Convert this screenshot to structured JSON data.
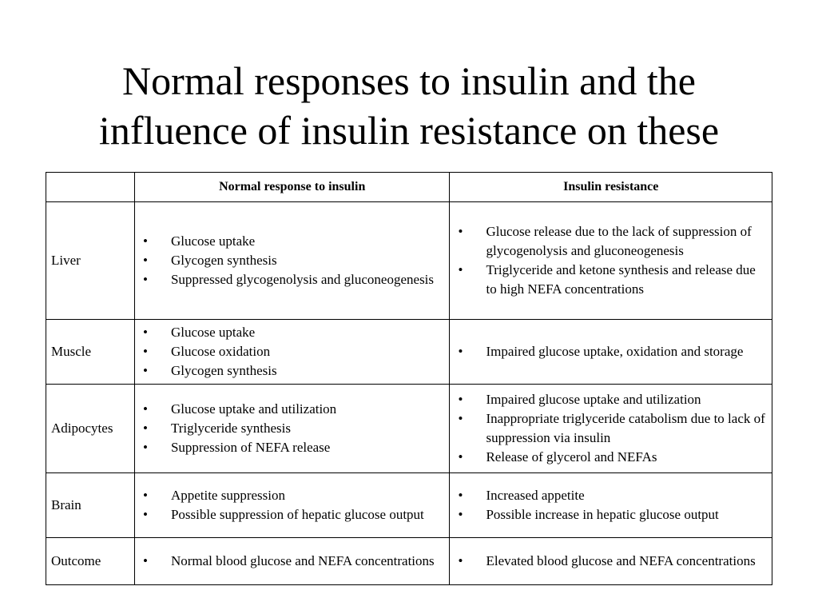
{
  "title": {
    "line1": "Normal responses to insulin and the",
    "line2": "influence of insulin resistance on these"
  },
  "table": {
    "headers": [
      "",
      "Normal response to insulin",
      "Insulin resistance"
    ],
    "rows": [
      {
        "organ": "Liver",
        "normal": [
          "Glucose uptake",
          "Glycogen synthesis",
          "Suppressed glycogenolysis and gluconeogenesis"
        ],
        "resistance": [
          "Glucose release due to the lack of suppression of glycogenolysis and gluconeogenesis",
          "Triglyceride and ketone synthesis and release due to high NEFA concentrations"
        ]
      },
      {
        "organ": "Muscle",
        "normal": [
          "Glucose uptake",
          "Glucose oxidation",
          "Glycogen synthesis"
        ],
        "resistance": [
          "Impaired glucose uptake, oxidation and storage"
        ]
      },
      {
        "organ": "Adipocytes",
        "normal": [
          "Glucose uptake and utilization",
          "Triglyceride synthesis",
          "Suppression of NEFA release"
        ],
        "resistance": [
          "Impaired glucose uptake and utilization",
          "Inappropriate triglyceride catabolism due to lack of suppression via insulin",
          "Release of glycerol and NEFAs"
        ]
      },
      {
        "organ": "Brain",
        "normal": [
          "Appetite suppression",
          "Possible suppression of hepatic glucose output"
        ],
        "resistance": [
          "Increased appetite",
          "Possible increase in hepatic glucose output"
        ]
      },
      {
        "organ": "Outcome",
        "normal": [
          "Normal blood glucose and NEFA concentrations"
        ],
        "resistance": [
          "Elevated blood glucose and NEFA concentrations"
        ]
      }
    ]
  }
}
